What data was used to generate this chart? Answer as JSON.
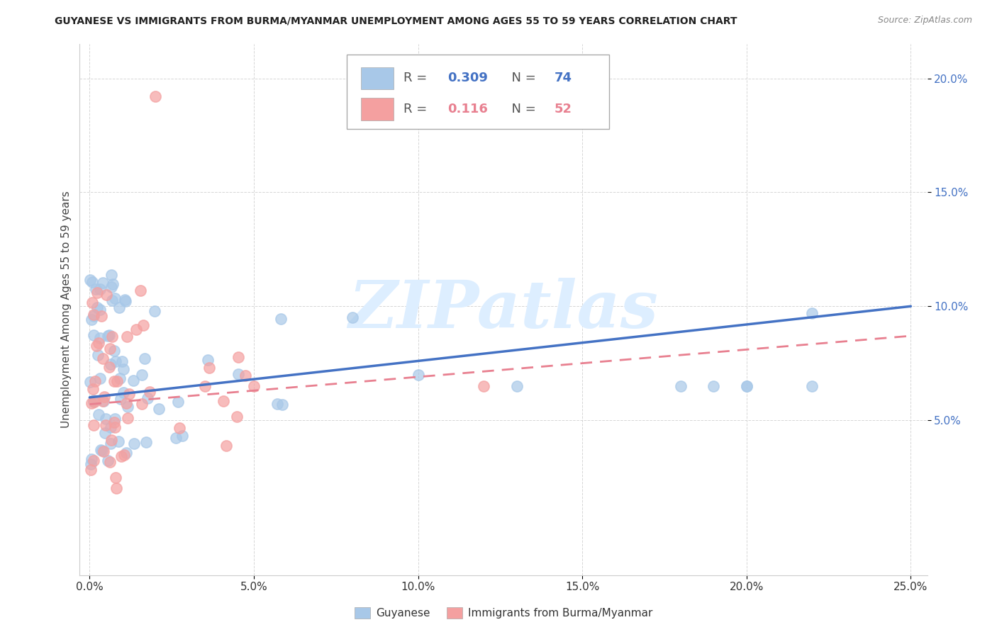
{
  "title": "GUYANESE VS IMMIGRANTS FROM BURMA/MYANMAR UNEMPLOYMENT AMONG AGES 55 TO 59 YEARS CORRELATION CHART",
  "source": "Source: ZipAtlas.com",
  "ylabel_label": "Unemployment Among Ages 55 to 59 years",
  "xlim": [
    -0.003,
    0.255
  ],
  "ylim": [
    -0.018,
    0.215
  ],
  "r_guyanese": 0.309,
  "n_guyanese": 74,
  "r_burma": 0.116,
  "n_burma": 52,
  "color_guyanese": "#a8c8e8",
  "color_burma": "#f4a0a0",
  "color_trend_guyanese": "#4472c4",
  "color_trend_burma": "#e88090",
  "watermark_color": "#ddeeff",
  "xticks": [
    0.0,
    0.05,
    0.1,
    0.15,
    0.2,
    0.25
  ],
  "yticks": [
    0.05,
    0.1,
    0.15,
    0.2
  ],
  "trend_g_x0": 0.0,
  "trend_g_y0": 0.06,
  "trend_g_x1": 0.25,
  "trend_g_y1": 0.1,
  "trend_b_x0": 0.0,
  "trend_b_y0": 0.057,
  "trend_b_x1": 0.25,
  "trend_b_y1": 0.087
}
